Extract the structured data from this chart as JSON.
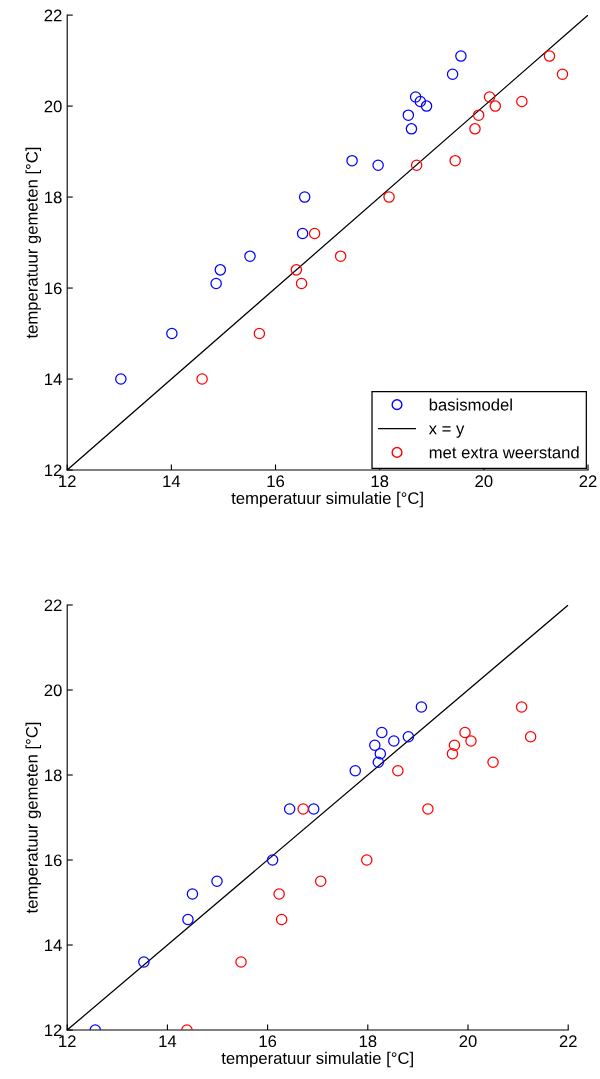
{
  "chart_data": [
    {
      "type": "scatter",
      "xlabel": "temperatuur simulatie [°C]",
      "ylabel": "temperatuur gemeten [°C]",
      "xlim": [
        12,
        22
      ],
      "ylim": [
        12,
        22
      ],
      "xticks": [
        12,
        14,
        16,
        18,
        20,
        22
      ],
      "yticks": [
        12,
        14,
        16,
        18,
        20,
        22
      ],
      "grid": false,
      "legend": "bottom right",
      "marker": "circle",
      "series": [
        {
          "name": "basismodel",
          "color": "#0000ff",
          "x": [
            13.03,
            14.01,
            14.86,
            14.94,
            15.51,
            16.52,
            16.56,
            17.47,
            17.97,
            18.55,
            18.61,
            18.69,
            18.78,
            18.9,
            19.4,
            19.56
          ],
          "values": [
            14.0,
            15.0,
            16.1,
            16.4,
            16.7,
            17.2,
            18.0,
            18.8,
            18.7,
            19.8,
            19.5,
            20.2,
            20.1,
            20.0,
            20.7,
            21.1
          ]
        },
        {
          "name": "x = y",
          "type": "line",
          "color": "#000000",
          "marker": "none",
          "x": [
            12,
            22
          ],
          "values": [
            12,
            22
          ]
        },
        {
          "name": "met extra weerstand",
          "color": "#ff0000",
          "x": [
            14.59,
            15.69,
            16.4,
            16.5,
            16.75,
            17.25,
            18.18,
            18.71,
            19.45,
            19.83,
            19.9,
            20.11,
            20.22,
            20.73,
            21.26,
            21.51
          ],
          "values": [
            14.0,
            15.0,
            16.4,
            16.1,
            17.2,
            16.7,
            18.0,
            18.7,
            18.8,
            19.5,
            19.8,
            20.2,
            20.0,
            20.1,
            21.1,
            20.7
          ]
        }
      ]
    },
    {
      "type": "scatter",
      "xlabel": "temperatuur simulatie [°C]",
      "ylabel": "temperatuur gemeten [°C]",
      "xlim": [
        12,
        22
      ],
      "ylim": [
        12,
        22
      ],
      "xticks": [
        12,
        14,
        16,
        18,
        20,
        22
      ],
      "yticks": [
        12,
        14,
        16,
        18,
        20,
        22
      ],
      "grid": false,
      "marker": "circle",
      "series": [
        {
          "color": "#0000ff",
          "x": [
            12.56,
            13.53,
            14.41,
            14.5,
            14.99,
            16.1,
            16.44,
            16.92,
            17.75,
            18.14,
            18.21,
            18.25,
            18.28,
            18.52,
            18.81,
            19.07
          ],
          "values": [
            12.0,
            13.6,
            14.6,
            15.2,
            15.5,
            16.0,
            17.2,
            17.2,
            18.1,
            18.7,
            18.3,
            18.5,
            19.0,
            18.8,
            18.9,
            19.6
          ]
        },
        {
          "type": "line",
          "color": "#000000",
          "marker": "none",
          "x": [
            12,
            22
          ],
          "values": [
            12,
            22
          ]
        },
        {
          "color": "#ff0000",
          "x": [
            14.39,
            15.47,
            16.23,
            16.28,
            16.71,
            17.06,
            17.98,
            18.6,
            19.2,
            19.69,
            19.73,
            19.94,
            20.06,
            20.5,
            21.07,
            21.25
          ],
          "values": [
            12.0,
            13.6,
            15.2,
            14.6,
            17.2,
            15.5,
            16.0,
            18.1,
            17.2,
            18.5,
            18.7,
            19.0,
            18.8,
            18.3,
            19.6,
            18.9
          ]
        }
      ]
    }
  ]
}
